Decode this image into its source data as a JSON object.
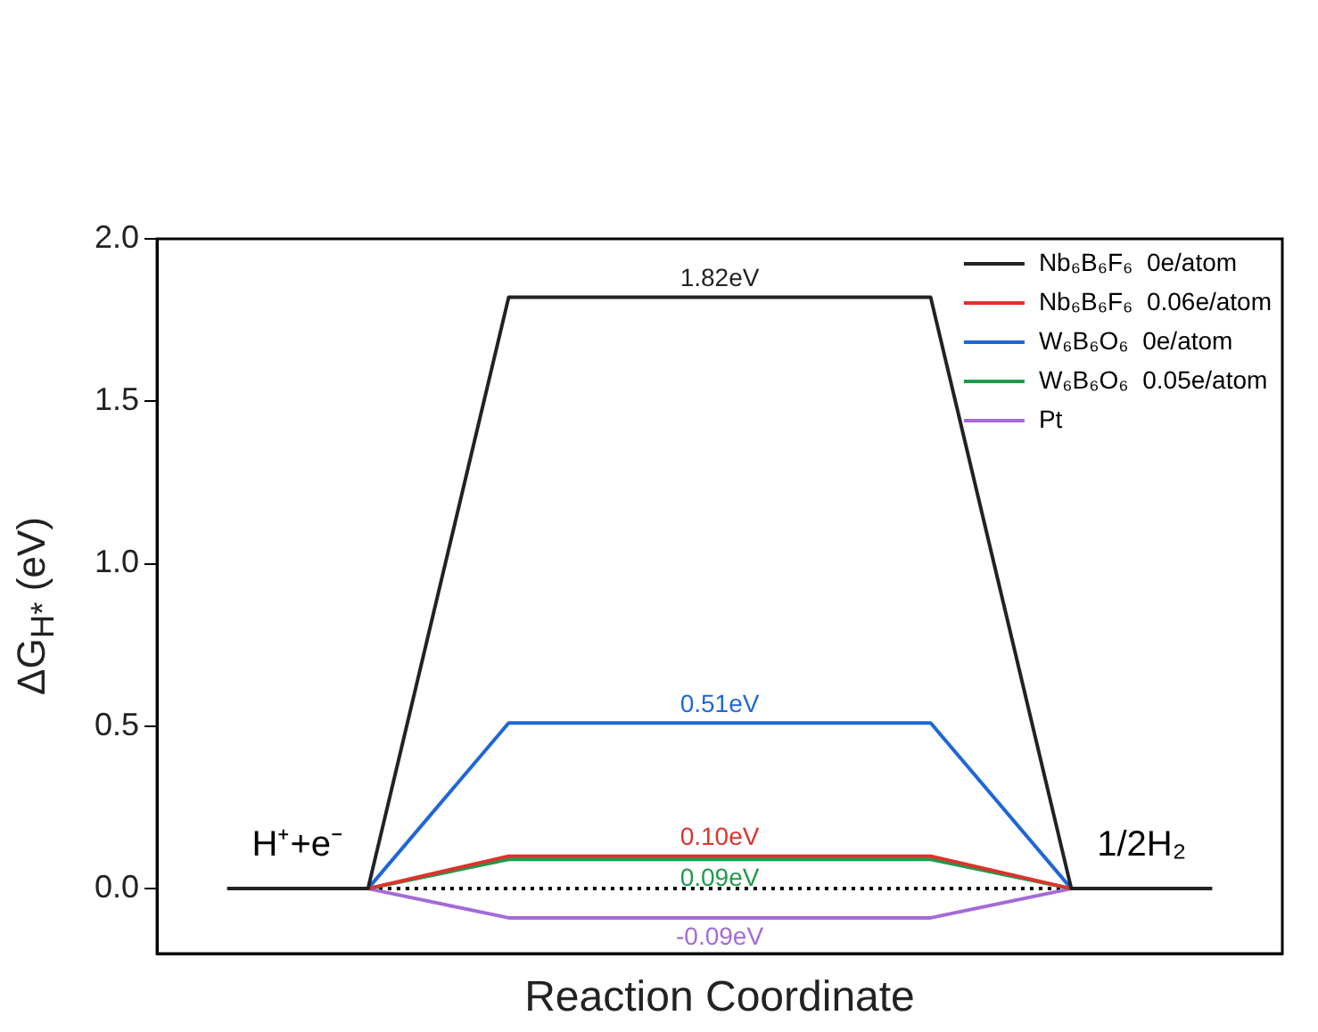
{
  "chart_data": {
    "type": "line",
    "xlabel": "Reaction Coordinate",
    "ylabel": "ΔG$_{H*}$ (eV)",
    "categories": [
      null,
      null,
      null,
      null,
      null,
      null,
      null,
      null
    ],
    "ylim": [
      -0.2,
      2.0
    ],
    "yticks": [
      {
        "value": 0,
        "label": "0.0"
      },
      {
        "value": 0.5,
        "label": "0.5"
      },
      {
        "value": 1,
        "label": "1.0"
      },
      {
        "value": 1.5,
        "label": "1.5"
      },
      {
        "value": 2,
        "label": "2.0"
      }
    ],
    "tick_labels": "y",
    "grid": false,
    "legend": "top right",
    "marker": "none",
    "annotations": [
      "H⁺+e⁻",
      "1/2H₂"
    ],
    "series": [
      {
        "name": "Nb₆B₆F₆  0e/atom",
        "color": "#222222",
        "values": [
          0,
          0,
          1.82,
          1.82,
          1.82,
          1.82,
          0,
          0
        ],
        "value_labels": [
          null,
          null,
          null,
          "1.82eV",
          null,
          null,
          null,
          null
        ]
      },
      {
        "name": "Nb₆B₆F₆  0.06e/atom",
        "color": "#e0312c",
        "values": [
          0,
          0,
          0.1,
          0.1,
          0.1,
          0.1,
          0,
          0
        ],
        "value_labels": [
          null,
          null,
          null,
          "0.10eV",
          null,
          null,
          null,
          null
        ]
      },
      {
        "name": "W₆B₆O₆  0e/atom",
        "color": "#1f67d6",
        "values": [
          0,
          0,
          0.51,
          0.51,
          0.51,
          0.51,
          0,
          0
        ],
        "value_labels": [
          null,
          null,
          null,
          "0.51eV",
          null,
          null,
          null,
          null
        ]
      },
      {
        "name": "W₆B₆O₆  0.05e/atom",
        "color": "#1f9a4a",
        "values": [
          0,
          0,
          0.09,
          0.09,
          0.09,
          0.09,
          0,
          0
        ],
        "value_labels": [
          null,
          null,
          null,
          "0.09eV",
          null,
          null,
          null,
          null
        ]
      },
      {
        "name": "Pt",
        "color": "#a46ad8",
        "values": [
          0,
          0,
          -0.09,
          -0.09,
          -0.09,
          -0.09,
          0,
          0
        ],
        "value_labels": [
          null,
          null,
          null,
          "-0.09eV",
          null,
          null,
          null,
          null
        ]
      },
      {
        "color": "#000000",
        "line_style": "dotted",
        "values": [
          0,
          0,
          0,
          0,
          0,
          0,
          0,
          0
        ]
      }
    ]
  }
}
